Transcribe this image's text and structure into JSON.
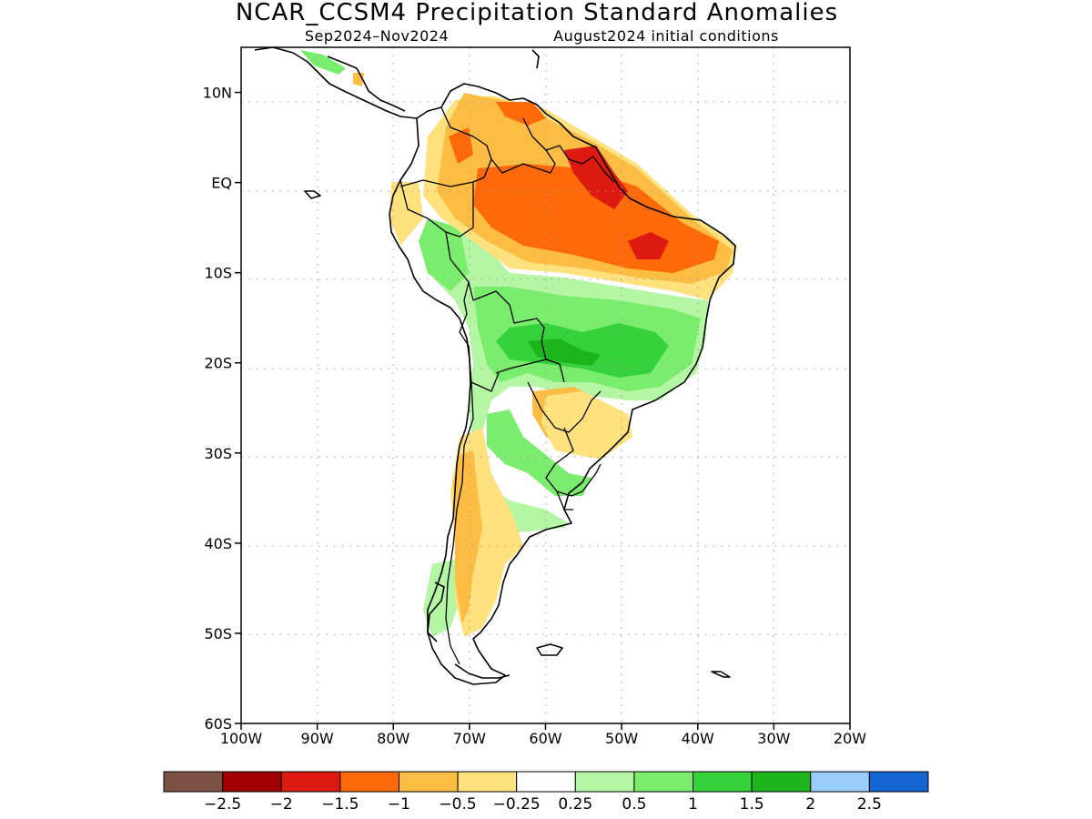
{
  "title": "NCAR_CCSM4 Precipitation Standard Anomalies",
  "subtitle_left": "Sep2024–Nov2024",
  "subtitle_right": "August2024 initial conditions",
  "map": {
    "lon_range": [
      -100,
      -20
    ],
    "lat_range": [
      -60,
      15
    ],
    "lat_ticks": [
      {
        "value": 10,
        "label": "10N"
      },
      {
        "value": 0,
        "label": "EQ"
      },
      {
        "value": -10,
        "label": "10S"
      },
      {
        "value": -20,
        "label": "20S"
      },
      {
        "value": -30,
        "label": "30S"
      },
      {
        "value": -40,
        "label": "40S"
      },
      {
        "value": -50,
        "label": "50S"
      },
      {
        "value": -60,
        "label": "60S"
      }
    ],
    "lon_ticks": [
      {
        "value": -100,
        "label": "100W"
      },
      {
        "value": -90,
        "label": "90W"
      },
      {
        "value": -80,
        "label": "80W"
      },
      {
        "value": -70,
        "label": "70W"
      },
      {
        "value": -60,
        "label": "60W"
      },
      {
        "value": -50,
        "label": "50W"
      },
      {
        "value": -40,
        "label": "40W"
      },
      {
        "value": -30,
        "label": "30W"
      },
      {
        "value": -20,
        "label": "20W"
      }
    ]
  },
  "colorbar": {
    "colors": [
      "#7a5144",
      "#a00000",
      "#dc1a10",
      "#fe6a0a",
      "#fdbd45",
      "#ffe27d",
      "#ffffff",
      "#b4f6a4",
      "#7aec6e",
      "#36d23c",
      "#1eb41e",
      "#98cdfa",
      "#1464d2"
    ],
    "labels": [
      "−2.5",
      "−2",
      "−1.5",
      "−1",
      "−0.5",
      "−0.25",
      "0.25",
      "0.5",
      "1",
      "1.5",
      "2",
      "2.5"
    ]
  }
}
